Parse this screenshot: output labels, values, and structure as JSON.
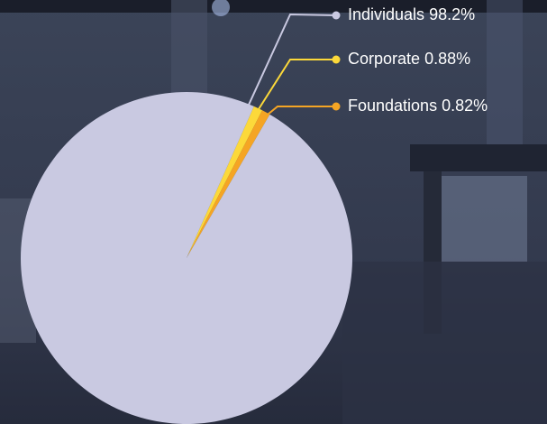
{
  "chart_data": {
    "type": "pie",
    "categories": [
      "Individuals",
      "Corporate",
      "Foundations"
    ],
    "values": [
      98.2,
      0.88,
      0.82
    ],
    "value_labels": [
      "98.2%",
      "0.88%",
      "0.82%"
    ],
    "colors": [
      "#c9c9e1",
      "#fcd93a",
      "#f5a524"
    ]
  }
}
